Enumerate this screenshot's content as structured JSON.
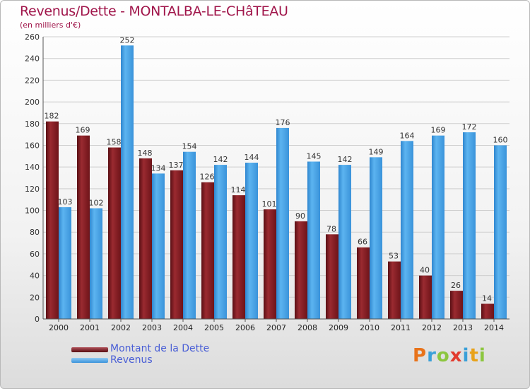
{
  "title": "Revenus/Dette - MONTALBA-LE-CHâTEAU",
  "subtitle": "(en milliers d'€)",
  "logo": {
    "text": "Proxiti",
    "letters": [
      "P",
      "r",
      "o",
      "x",
      "i",
      "t",
      "i"
    ],
    "colors": [
      "#e8731a",
      "#3aa0d8",
      "#8cc63f",
      "#e23b2e",
      "#3aa0d8",
      "#e8a21a",
      "#8cc63f"
    ]
  },
  "chart_data": {
    "type": "bar",
    "categories": [
      "2000",
      "2001",
      "2002",
      "2003",
      "2004",
      "2005",
      "2006",
      "2007",
      "2008",
      "2009",
      "2010",
      "2011",
      "2012",
      "2013",
      "2014"
    ],
    "series": [
      {
        "name": "Montant de la Dette",
        "color": "#8a1c24",
        "values": [
          182,
          169,
          158,
          148,
          137,
          126,
          114,
          101,
          90,
          78,
          66,
          53,
          40,
          26,
          14
        ]
      },
      {
        "name": "Revenus",
        "color": "#4aa3e6",
        "values": [
          103,
          102,
          252,
          134,
          154,
          142,
          144,
          176,
          145,
          142,
          149,
          164,
          169,
          172,
          160
        ]
      }
    ],
    "ylim": [
      0,
      260
    ],
    "yticks": [
      0,
      20,
      40,
      60,
      80,
      100,
      120,
      140,
      160,
      180,
      200,
      220,
      240,
      260
    ],
    "grid": true,
    "legend_position": "bottom-left"
  }
}
